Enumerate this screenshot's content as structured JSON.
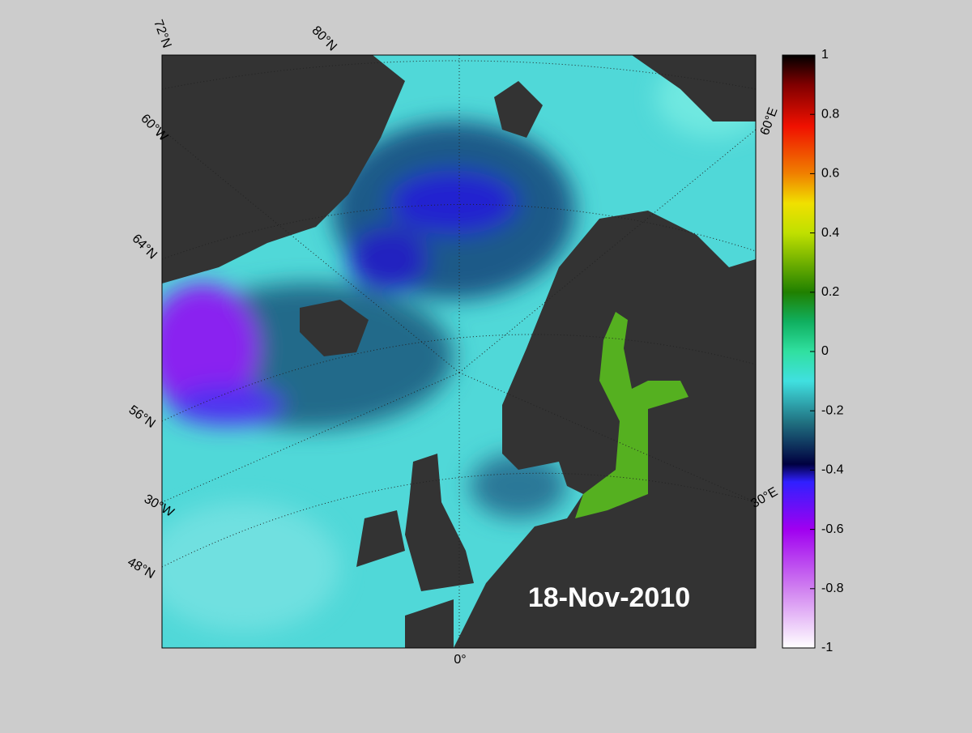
{
  "map": {
    "date": "18-Nov-2010",
    "grid_labels": [
      "72°N",
      "80°N",
      "60°W",
      "64°N",
      "56°N",
      "30°W",
      "48°N",
      "0°",
      "60°E",
      "30°E"
    ]
  },
  "colorbar": {
    "lim": [
      -1,
      1
    ],
    "ticks": [
      1,
      0.8,
      0.6,
      0.4,
      0.2,
      0,
      -0.2,
      -0.4,
      -0.6,
      -0.8,
      -1
    ]
  }
}
